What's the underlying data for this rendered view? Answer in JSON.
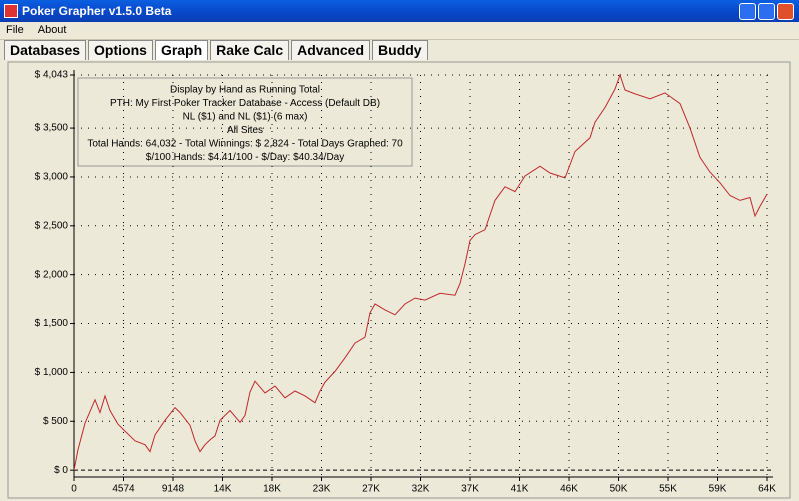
{
  "window": {
    "title": "Poker Grapher v1.5.0 Beta"
  },
  "menu": [
    "File",
    "About"
  ],
  "tabs": [
    "Databases",
    "Options",
    "Graph",
    "Rake Calc",
    "Advanced",
    "Buddy"
  ],
  "active_tab": 2,
  "chart_data": {
    "type": "line",
    "annotations": [
      "Display by Hand as Running Total",
      "PTH: My First Poker Tracker Database - Access (Default DB)",
      "NL ($1) and NL ($1) (6 max)",
      "All Sites",
      "Total Hands: 64,032 - Total Winnings: $ 2,824 - Total Days Graphed: 70",
      "$/100 Hands: $4.41/100 - $/Day: $40.34/Day"
    ],
    "color": "#c0282a",
    "grid": true,
    "x": [
      0,
      370,
      1016,
      1940,
      2402,
      2864,
      3326,
      4066,
      4712,
      5636,
      6560,
      7022,
      7484,
      8408,
      9332,
      9794,
      10718,
      11180,
      11642,
      12104,
      12566,
      13028,
      13490,
      14414,
      15338,
      15800,
      16262,
      16724,
      17648,
      18572,
      19496,
      20420,
      21344,
      22268,
      22730,
      23192,
      24116,
      25040,
      25964,
      26888,
      27350,
      27812,
      28736,
      29660,
      30584,
      31508,
      32432,
      33818,
      35204,
      35666,
      36128,
      36590,
      37052,
      37976,
      38900,
      39824,
      40748,
      41672,
      43058,
      43982,
      45368,
      46292,
      47678,
      48140,
      49064,
      49988,
      50450,
      50912,
      51836,
      53222,
      54608,
      55994,
      56918,
      57842,
      58766,
      59690,
      60614,
      61538,
      62462,
      62924,
      63386,
      64032
    ],
    "values": [
      0,
      210,
      480,
      720,
      590,
      760,
      610,
      470,
      400,
      300,
      260,
      190,
      360,
      510,
      640,
      590,
      460,
      300,
      190,
      260,
      310,
      350,
      510,
      610,
      490,
      560,
      800,
      910,
      790,
      860,
      740,
      810,
      760,
      690,
      810,
      900,
      1010,
      1150,
      1300,
      1360,
      1610,
      1700,
      1640,
      1590,
      1700,
      1760,
      1740,
      1810,
      1790,
      1910,
      2110,
      2350,
      2410,
      2460,
      2760,
      2900,
      2850,
      3010,
      3110,
      3040,
      2990,
      3260,
      3400,
      3560,
      3710,
      3900,
      4043,
      3890,
      3850,
      3800,
      3860,
      3750,
      3500,
      3200,
      3050,
      2940,
      2810,
      2760,
      2790,
      2600,
      2700,
      2824
    ],
    "xlim": [
      0,
      64032
    ],
    "xticks": [
      0,
      4574,
      9148,
      {
        "value": 13722,
        "label": "14K"
      },
      {
        "value": 18296,
        "label": "18K"
      },
      {
        "value": 22870,
        "label": "23K"
      },
      {
        "value": 27444,
        "label": "27K"
      },
      {
        "value": 32018,
        "label": "32K"
      },
      {
        "value": 36592,
        "label": "37K"
      },
      {
        "value": 41166,
        "label": "41K"
      },
      {
        "value": 45740,
        "label": "46K"
      },
      {
        "value": 50314,
        "label": "50K"
      },
      {
        "value": 54888,
        "label": "55K"
      },
      {
        "value": 59462,
        "label": "59K"
      },
      {
        "value": 64032,
        "label": "64K"
      }
    ],
    "ylim": [
      -70,
      4043
    ],
    "yticks": [
      {
        "value": 0,
        "label": "$ 0"
      },
      {
        "value": 500,
        "label": "$ 500"
      },
      {
        "value": 1000,
        "label": "$ 1,000"
      },
      {
        "value": 1500,
        "label": "$ 1,500"
      },
      {
        "value": 2000,
        "label": "$ 2,000"
      },
      {
        "value": 2500,
        "label": "$ 2,500"
      },
      {
        "value": 3000,
        "label": "$ 3,000"
      },
      {
        "value": 3500,
        "label": "$ 3,500"
      },
      {
        "value": 4043,
        "label": "$ 4,043"
      }
    ]
  }
}
